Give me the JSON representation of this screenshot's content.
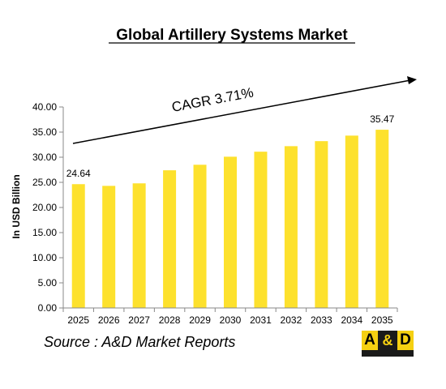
{
  "chart_data": {
    "type": "bar",
    "title": "Global Artillery Systems Market",
    "ylabel": "In USD Billion",
    "xlabel": "",
    "categories": [
      "2025",
      "2026",
      "2027",
      "2028",
      "2029",
      "2030",
      "2031",
      "2032",
      "2033",
      "2034",
      "2035"
    ],
    "values": [
      24.64,
      24.3,
      24.8,
      27.4,
      28.5,
      30.1,
      31.1,
      32.2,
      33.2,
      34.3,
      35.47
    ],
    "data_labels": {
      "2025": "24.64",
      "2035": "35.47"
    },
    "yticks": [
      "0.00",
      "5.00",
      "10.00",
      "15.00",
      "20.00",
      "25.00",
      "30.00",
      "35.00",
      "40.00"
    ],
    "ylim": [
      0,
      40
    ],
    "grid": false,
    "bar_color": "#fde12d",
    "annotation": "CAGR  3.71%"
  },
  "source_text": "Source : A&D Market Reports",
  "logo": {
    "left": "A",
    "amp": "&",
    "right": "D"
  }
}
